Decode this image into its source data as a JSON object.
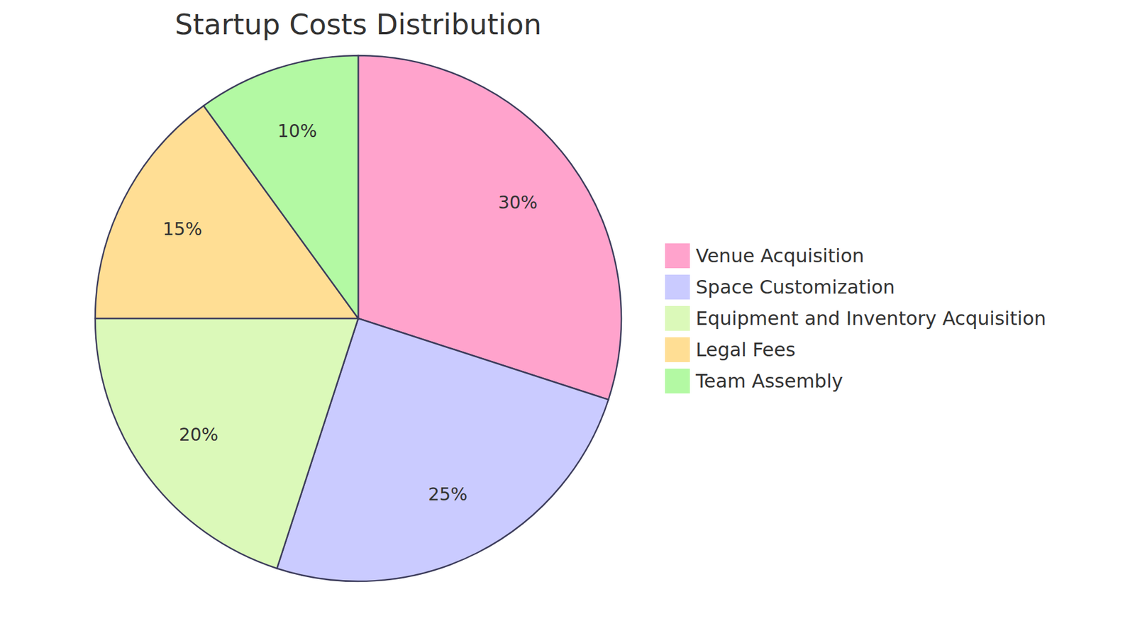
{
  "chart_data": {
    "type": "pie",
    "title": "Startup Costs Distribution",
    "categories": [
      "Venue Acquisition",
      "Space Customization",
      "Equipment and Inventory Acquisition",
      "Legal Fees",
      "Team Assembly"
    ],
    "values": [
      30,
      25,
      20,
      15,
      10
    ],
    "value_labels": [
      "30%",
      "25%",
      "20%",
      "15%",
      "10%"
    ],
    "colors": [
      "#ffa3cc",
      "#cacbff",
      "#dbf9b9",
      "#ffde94",
      "#b3f9a3"
    ],
    "data_labels": true,
    "legend": "right"
  }
}
